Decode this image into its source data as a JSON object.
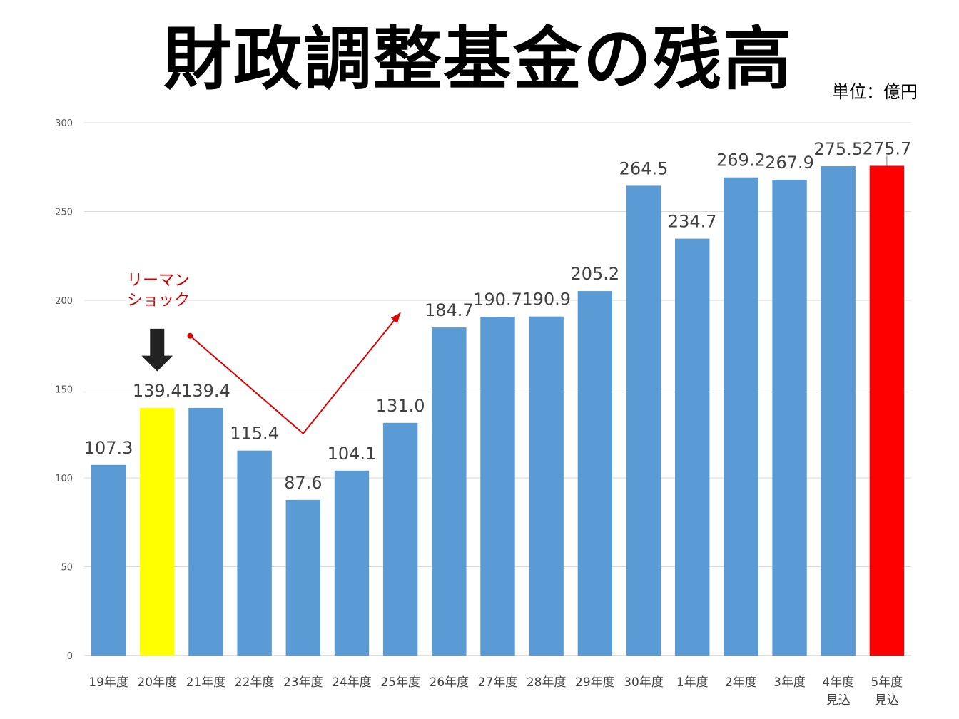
{
  "title": "財政調整基金の残高",
  "unit": "単位：億円",
  "annotation": {
    "line1": "リーマン",
    "line2": "ショック",
    "color": "#cc0000"
  },
  "colors": {
    "bar": "#5b9bd5",
    "highlight_2008": "#ffff00",
    "highlight_latest": "#ff0000",
    "grid": "#d9d9d9",
    "arrow": "#222222",
    "trend": "#e00000"
  },
  "chart_data": {
    "type": "bar",
    "title": "財政調整基金の残高",
    "xlabel": "",
    "ylabel": "単位：億円",
    "ylim": [
      0,
      300
    ],
    "yticks": [
      0,
      50,
      100,
      150,
      200,
      250,
      300
    ],
    "grid": true,
    "categories": [
      [
        "19年度"
      ],
      [
        "20年度"
      ],
      [
        "21年度"
      ],
      [
        "22年度"
      ],
      [
        "23年度"
      ],
      [
        "24年度"
      ],
      [
        "25年度"
      ],
      [
        "26年度"
      ],
      [
        "27年度"
      ],
      [
        "28年度"
      ],
      [
        "29年度"
      ],
      [
        "30年度"
      ],
      [
        "1年度"
      ],
      [
        "2年度"
      ],
      [
        "3年度"
      ],
      [
        "4年度",
        "見込"
      ],
      [
        "5年度",
        "見込"
      ]
    ],
    "values": [
      107.3,
      139.4,
      139.4,
      115.4,
      87.6,
      104.1,
      131.0,
      184.7,
      190.7,
      190.9,
      205.2,
      264.5,
      234.7,
      269.2,
      267.9,
      275.5,
      275.7
    ],
    "value_labels": [
      "107.3",
      "139.4",
      "139.4",
      "115.4",
      "87.6",
      "104.1",
      "131.0",
      "184.7",
      "190.7",
      "190.9",
      "205.2",
      "264.5",
      "234.7",
      "269.2",
      "267.9",
      "275.5",
      "275.7"
    ],
    "bar_colors": [
      "bar",
      "highlight_2008",
      "bar",
      "bar",
      "bar",
      "bar",
      "bar",
      "bar",
      "bar",
      "bar",
      "bar",
      "bar",
      "bar",
      "bar",
      "bar",
      "bar",
      "highlight_latest"
    ],
    "trend_line": [
      {
        "category_index": 2,
        "value": 180
      },
      {
        "category_index": 4,
        "value": 125
      },
      {
        "category_index": 6,
        "value": 193
      }
    ],
    "callout_arrow": {
      "category_index": 1,
      "value_top": 184,
      "value_bottom": 160
    }
  }
}
